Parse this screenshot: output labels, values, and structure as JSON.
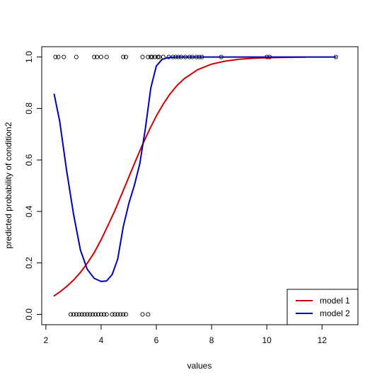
{
  "chart_data": {
    "type": "line",
    "title": "",
    "xlabel": "values",
    "ylabel": "predicted probability of condition2",
    "xlim": [
      1.85,
      13.3
    ],
    "ylim": [
      -0.04,
      1.04
    ],
    "xticks": [
      2,
      4,
      6,
      8,
      10,
      12
    ],
    "yticks": [
      0.0,
      0.2,
      0.4,
      0.6,
      0.8,
      1.0
    ],
    "xtick_labels": [
      "2",
      "4",
      "6",
      "8",
      "10",
      "12"
    ],
    "ytick_labels": [
      "0.0",
      "0.2",
      "0.4",
      "0.6",
      "0.8",
      "1.0"
    ],
    "grid": false,
    "legend_position": "bottom-right",
    "series": [
      {
        "name": "model 1",
        "color": "#cc0000",
        "x": [
          2.3,
          2.5,
          2.75,
          3.0,
          3.25,
          3.5,
          3.75,
          4.0,
          4.25,
          4.5,
          4.75,
          5.0,
          5.25,
          5.5,
          5.75,
          6.0,
          6.25,
          6.5,
          6.75,
          7.0,
          7.5,
          8.0,
          8.5,
          9.0,
          9.5,
          10.0,
          10.5,
          11.0,
          11.4
        ],
        "y": [
          0.072,
          0.087,
          0.108,
          0.133,
          0.163,
          0.199,
          0.24,
          0.29,
          0.346,
          0.404,
          0.468,
          0.533,
          0.597,
          0.66,
          0.718,
          0.771,
          0.817,
          0.857,
          0.889,
          0.915,
          0.951,
          0.972,
          0.984,
          0.991,
          0.995,
          0.997,
          0.998,
          0.999,
          0.9995
        ]
      },
      {
        "name": "model 2",
        "color": "#0000b4",
        "x": [
          2.3,
          2.5,
          2.75,
          3.0,
          3.25,
          3.5,
          3.75,
          4.0,
          4.2,
          4.4,
          4.6,
          4.8,
          5.0,
          5.2,
          5.4,
          5.6,
          5.8,
          6.0,
          6.2,
          6.4,
          6.6,
          6.8,
          7.0,
          7.5,
          8.0,
          9.0,
          10.0,
          11.0,
          12.0,
          12.5
        ],
        "y": [
          0.855,
          0.75,
          0.56,
          0.39,
          0.25,
          0.175,
          0.14,
          0.128,
          0.13,
          0.155,
          0.215,
          0.34,
          0.43,
          0.5,
          0.585,
          0.72,
          0.88,
          0.965,
          0.99,
          0.997,
          0.999,
          1.0,
          1.0,
          1.0,
          1.0,
          1.0,
          1.0,
          1.0,
          1.0,
          1.0
        ]
      }
    ],
    "observations": {
      "y1": [
        2.35,
        2.45,
        2.65,
        3.1,
        3.75,
        3.85,
        4.0,
        4.2,
        4.8,
        4.9,
        5.5,
        5.7,
        5.8,
        5.85,
        5.95,
        6.05,
        6.1,
        6.25,
        6.45,
        6.6,
        6.7,
        6.8,
        6.9,
        7.05,
        7.2,
        7.3,
        7.45,
        7.55,
        7.65,
        8.35,
        10.0,
        10.1,
        12.5
      ],
      "y0": [
        2.9,
        3.0,
        3.1,
        3.2,
        3.3,
        3.4,
        3.5,
        3.6,
        3.7,
        3.8,
        3.9,
        4.0,
        4.1,
        4.2,
        4.4,
        4.5,
        4.6,
        4.7,
        4.8,
        4.9,
        5.5,
        5.7
      ]
    }
  }
}
